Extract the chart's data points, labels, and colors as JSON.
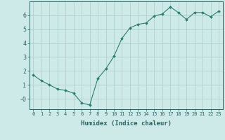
{
  "x": [
    0,
    1,
    2,
    3,
    4,
    5,
    6,
    7,
    8,
    9,
    10,
    11,
    12,
    13,
    14,
    15,
    16,
    17,
    18,
    19,
    20,
    21,
    22,
    23
  ],
  "y": [
    1.7,
    1.3,
    1.0,
    0.7,
    0.6,
    0.4,
    -0.3,
    -0.45,
    1.45,
    2.15,
    3.05,
    4.35,
    5.1,
    5.35,
    5.45,
    5.95,
    6.1,
    6.6,
    6.2,
    5.7,
    6.2,
    6.2,
    5.9,
    6.3
  ],
  "line_color": "#2e7d6e",
  "marker": "D",
  "marker_size": 2.0,
  "background_color": "#ceeae8",
  "grid_color": "#b0d0cc",
  "tick_color": "#2e6060",
  "xlabel": "Humidex (Indice chaleur)",
  "xlabel_fontsize": 6.5,
  "xlim": [
    -0.5,
    23.5
  ],
  "ylim": [
    -0.75,
    7.0
  ],
  "yticks": [
    0,
    1,
    2,
    3,
    4,
    5,
    6
  ],
  "ytick_labels": [
    "-0",
    "1",
    "2",
    "3",
    "4",
    "5",
    "6"
  ],
  "xticks": [
    0,
    1,
    2,
    3,
    4,
    5,
    6,
    7,
    8,
    9,
    10,
    11,
    12,
    13,
    14,
    15,
    16,
    17,
    18,
    19,
    20,
    21,
    22,
    23
  ],
  "xtick_fontsize": 5.0,
  "ytick_fontsize": 6.0
}
